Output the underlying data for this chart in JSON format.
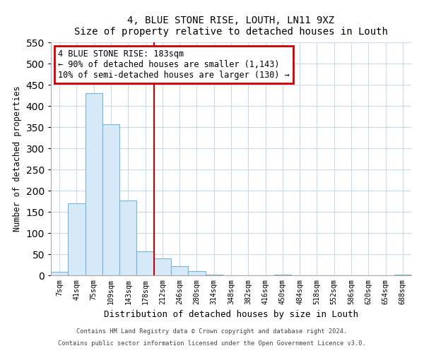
{
  "title": "4, BLUE STONE RISE, LOUTH, LN11 9XZ",
  "subtitle": "Size of property relative to detached houses in Louth",
  "xlabel": "Distribution of detached houses by size in Louth",
  "ylabel": "Number of detached properties",
  "bar_labels": [
    "7sqm",
    "41sqm",
    "75sqm",
    "109sqm",
    "143sqm",
    "178sqm",
    "212sqm",
    "246sqm",
    "280sqm",
    "314sqm",
    "348sqm",
    "382sqm",
    "416sqm",
    "450sqm",
    "484sqm",
    "518sqm",
    "552sqm",
    "586sqm",
    "620sqm",
    "654sqm",
    "688sqm"
  ],
  "bar_heights": [
    8,
    170,
    430,
    357,
    176,
    57,
    40,
    22,
    10,
    2,
    0,
    0,
    0,
    1,
    0,
    0,
    0,
    0,
    0,
    0,
    1
  ],
  "bar_color": "#d6e9f8",
  "bar_edge_color": "#7ab4d4",
  "vline_color": "#cc0000",
  "annotation_title": "4 BLUE STONE RISE: 183sqm",
  "annotation_line1": "← 90% of detached houses are smaller (1,143)",
  "annotation_line2": "10% of semi-detached houses are larger (130) →",
  "annotation_box_color": "#ffffff",
  "annotation_box_edge": "#cc0000",
  "ylim": [
    0,
    550
  ],
  "yticks": [
    0,
    50,
    100,
    150,
    200,
    250,
    300,
    350,
    400,
    450,
    500,
    550
  ],
  "grid_color": "#c8daea",
  "footer_line1": "Contains HM Land Registry data © Crown copyright and database right 2024.",
  "footer_line2": "Contains public sector information licensed under the Open Government Licence v3.0."
}
